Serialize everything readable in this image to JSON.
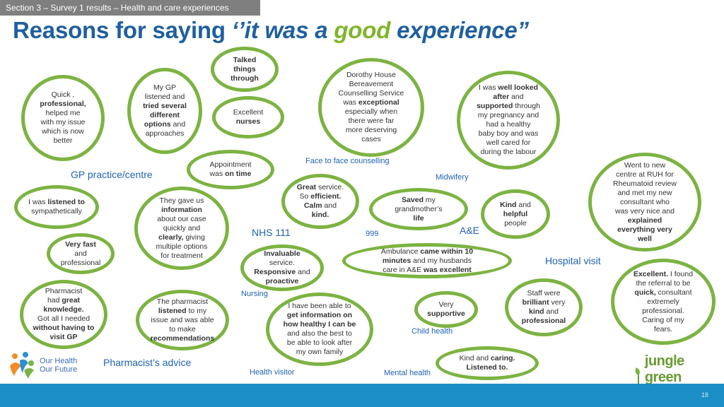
{
  "header": {
    "section": "Section 3 – Survey 1 results – Health and care experiences",
    "title_pre": "Reasons for saying ",
    "title_quote1": "‘’it was a ",
    "title_good": "good",
    "title_post": " experience”"
  },
  "bubbles": {
    "talked": {
      "l1": "Talked",
      "l2": "things",
      "l3": "through"
    },
    "gp_listened": {
      "l1": "My GP",
      "l2": "listened and",
      "l3": "tried several",
      "l4": "different",
      "l5": "options",
      "l5b": " and",
      "l6": "approaches"
    },
    "quick_prof": {
      "l1": "Quick ,",
      "l2": "professional,",
      "l3": "helped me",
      "l4": "with my issue",
      "l5": "which is now",
      "l6": "better"
    },
    "excellent_nurses": {
      "l1": "Excellent",
      "l2": "nurses"
    },
    "dorothy": {
      "l1": "Dorothy House",
      "l2": "Bereavement",
      "l3": "Counselling Service",
      "l4a": "was ",
      "l4b": "exceptional",
      "l5": "especially when",
      "l6": "there were far",
      "l7": "more deserving",
      "l8": "cases"
    },
    "looked_after": {
      "l1a": "I was ",
      "l1b": "well looked",
      "l2a": "after",
      "l2b": " and",
      "l3a": "supported",
      "l3b": " through",
      "l4": "my pregnancy and",
      "l5": "had a healthy",
      "l6": "baby boy and was",
      "l7": "well cared for",
      "l8": "during the labour"
    },
    "appointment": {
      "l1": "Appointment",
      "l2a": "was ",
      "l2b": "on time"
    },
    "ruh": {
      "l1": "Went to new",
      "l2": "centre at RUH for",
      "l3": "Rheumatoid review",
      "l4": "and met my new",
      "l5": "consultant who",
      "l6": "was very nice and",
      "l7": "explained",
      "l8": "everything very",
      "l9": "well"
    },
    "listened_symp": {
      "l1a": "I was ",
      "l1b": "listened to",
      "l2": "sympathetically"
    },
    "info_case": {
      "l1": "They gave us",
      "l2": "information",
      "l3": "about our case",
      "l4": "quickly and",
      "l5a": "clearly,",
      "l5b": " giving",
      "l6": "multiple options",
      "l7": "for treatment"
    },
    "nhs111": {
      "l1a": "Great",
      "l1b": " service.",
      "l2a": "So ",
      "l2b": "efficient.",
      "l3a": "Calm",
      "l3b": " and",
      "l4": "kind."
    },
    "saved_life": {
      "l1a": "Saved",
      "l1b": " my",
      "l2": "grandmother’s",
      "l3": "life"
    },
    "kind_helpful": {
      "l1a": "Kind",
      "l1b": " and",
      "l2": "helpful",
      "l3": "people"
    },
    "very_fast": {
      "l1": "Very fast",
      "l2": "and",
      "l3": "professional"
    },
    "invaluable": {
      "l1": "Invaluable",
      "l2": "service.",
      "l3a": "Responsive",
      "l3b": " and",
      "l4": "proactive"
    },
    "ambulance": {
      "l1a": "Ambulance ",
      "l1b": "came within 10",
      "l2a": "minutes",
      "l2b": " and my husbands",
      "l3a": "care in A&E ",
      "l3b": "was excellent"
    },
    "excellent_referral": {
      "l1a": "Excellent.",
      "l1b": " I found",
      "l2": "the referral to be",
      "l3a": "quick,",
      "l3b": " consultant",
      "l4": "extremely",
      "l5": "professional.",
      "l6": "Caring of my",
      "l7": "fears."
    },
    "staff_brilliant": {
      "l1": "Staff were",
      "l2a": "brilliant",
      "l2b": " very",
      "l3a": "kind",
      "l3b": " and",
      "l4": "professional"
    },
    "pharmacist_knowledge": {
      "l1": "Pharmacist",
      "l2a": "had ",
      "l2b": "great",
      "l3": "knowledge.",
      "l4": "Got all I needed",
      "l5": "without having to",
      "l6": "visit GP"
    },
    "pharmacist_listened": {
      "l1": "The pharmacist",
      "l2a": "listened",
      "l2b": " to my",
      "l3": "issue and was able",
      "l4": "to make",
      "l5": "recommendations"
    },
    "health_visitor": {
      "l1": "I have been able to",
      "l2": "get information on",
      "l3": "how healthy I can be",
      "l4": "and also the best to",
      "l5": "be able to look after",
      "l6": "my own family"
    },
    "very_supportive": {
      "l1": "Very",
      "l2": "supportive"
    },
    "mental_health": {
      "l1a": "Kind and ",
      "l1b": "caring.",
      "l2": "Listened to."
    }
  },
  "labels": {
    "gp_practice": "GP practice/centre",
    "face_to_face": "Face to face counselling",
    "midwifery": "Midwifery",
    "nhs111": "NHS 111",
    "n999": "999",
    "ae": "A&E",
    "hospital_visit": "Hospital visit",
    "nursing": "Nursing",
    "child_health": "Child health",
    "pharmacist_advice": "Pharmacist’s advice",
    "health_visitor": "Health visitor",
    "mental_health": "Mental health"
  },
  "logos": {
    "ohof_line1": "Our Health",
    "ohof_line2": "Our Future",
    "jungle_green": "jungle green"
  },
  "footer": {
    "page_number": "18"
  },
  "colors": {
    "bubble_border": "#7cb342",
    "title_blue": "#1f5f9f",
    "accent_green": "#7fb52a",
    "footer_blue": "#1a8fc6"
  }
}
